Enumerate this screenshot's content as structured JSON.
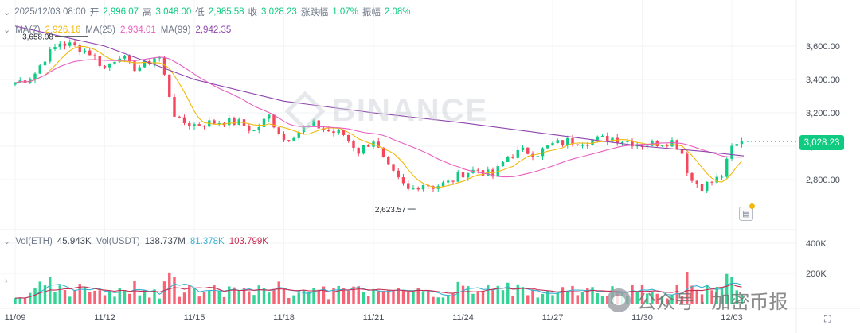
{
  "header": {
    "date": "2025/12/03 08:00",
    "open_label": "开",
    "open": "2,996.07",
    "high_label": "高",
    "high": "3,048.00",
    "low_label": "低",
    "low": "2,985.58",
    "close_label": "收",
    "close": "3,028.23",
    "change_label": "涨跌幅",
    "change": "1.07%",
    "amplitude_label": "振幅",
    "amplitude": "2.08%"
  },
  "ma_legend": {
    "ma7_label": "MA(7)",
    "ma7": "2,926.16",
    "ma25_label": "MA(25)",
    "ma25": "2,934.01",
    "ma99_label": "MA(99)",
    "ma99": "2,942.35"
  },
  "vol_legend": {
    "label1": "Vol(ETH)",
    "value1": "45.943K",
    "label2": "Vol(USDT)",
    "value2": "138.737M",
    "value3": "81.378K",
    "value4": "103.799K"
  },
  "watermark": "BINANCE",
  "wechat_watermark": "公众号 · 加密币报",
  "current_price_tag": "3,028.23",
  "colors": {
    "up": "#0ecb81",
    "down": "#f6465d",
    "ma7": "#f0b90b",
    "ma25": "#e85fc0",
    "ma99": "#8e44ad",
    "vol_ma1": "#38b2d0",
    "vol_ma2": "#c72e55"
  },
  "chart_data": [
    {
      "type": "candlestick",
      "title": "ETH/USDT",
      "x_ticks": [
        "11/09",
        "11/12",
        "11/15",
        "11/18",
        "11/21",
        "11/24",
        "11/27",
        "11/30",
        "12/03"
      ],
      "y_ticks": [
        "2,800.00",
        "3,000.00",
        "3,200.00",
        "3,400.00",
        "3,600.00"
      ],
      "ylim": [
        2600,
        3700
      ],
      "annotations": {
        "high_label": "3,658.98",
        "low_label": "2,623.57"
      },
      "knots": [
        {
          "day": 0,
          "close": 3380
        },
        {
          "day": 0.6,
          "close": 3420
        },
        {
          "day": 1.0,
          "close": 3530
        },
        {
          "day": 1.5,
          "close": 3620
        },
        {
          "day": 2.0,
          "close": 3600
        },
        {
          "day": 2.5,
          "close": 3560
        },
        {
          "day": 3.0,
          "close": 3470
        },
        {
          "day": 3.5,
          "close": 3550
        },
        {
          "day": 3.9,
          "close": 3470
        },
        {
          "day": 4.3,
          "close": 3480
        },
        {
          "day": 4.8,
          "close": 3550
        },
        {
          "day": 5.0,
          "close": 3420
        },
        {
          "day": 5.4,
          "close": 3150
        },
        {
          "day": 6.0,
          "close": 3130
        },
        {
          "day": 6.5,
          "close": 3140
        },
        {
          "day": 7.0,
          "close": 3150
        },
        {
          "day": 7.5,
          "close": 3140
        },
        {
          "day": 8.0,
          "close": 3090
        },
        {
          "day": 8.5,
          "close": 3180
        },
        {
          "day": 9.0,
          "close": 3040
        },
        {
          "day": 9.5,
          "close": 3090
        },
        {
          "day": 10.0,
          "close": 3130
        },
        {
          "day": 10.5,
          "close": 3090
        },
        {
          "day": 11.0,
          "close": 3070
        },
        {
          "day": 11.5,
          "close": 2970
        },
        {
          "day": 12.0,
          "close": 3040
        },
        {
          "day": 12.4,
          "close": 2890
        },
        {
          "day": 12.8,
          "close": 2800
        },
        {
          "day": 13.2,
          "close": 2730
        },
        {
          "day": 13.6,
          "close": 2780
        },
        {
          "day": 14.0,
          "close": 2760
        },
        {
          "day": 14.5,
          "close": 2780
        },
        {
          "day": 15.0,
          "close": 2840
        },
        {
          "day": 15.5,
          "close": 2860
        },
        {
          "day": 16.0,
          "close": 2820
        },
        {
          "day": 16.5,
          "close": 2940
        },
        {
          "day": 17.0,
          "close": 2970
        },
        {
          "day": 17.5,
          "close": 2960
        },
        {
          "day": 18.0,
          "close": 3010
        },
        {
          "day": 18.5,
          "close": 3030
        },
        {
          "day": 19.0,
          "close": 3030
        },
        {
          "day": 19.5,
          "close": 3040
        },
        {
          "day": 20.0,
          "close": 3050
        },
        {
          "day": 20.5,
          "close": 3030
        },
        {
          "day": 21.0,
          "close": 3010
        },
        {
          "day": 21.5,
          "close": 3020
        },
        {
          "day": 22.0,
          "close": 3030
        },
        {
          "day": 22.3,
          "close": 2980
        },
        {
          "day": 22.6,
          "close": 2800
        },
        {
          "day": 23.0,
          "close": 2760
        },
        {
          "day": 23.4,
          "close": 2790
        },
        {
          "day": 23.7,
          "close": 2830
        },
        {
          "day": 24.0,
          "close": 2990
        },
        {
          "day": 24.4,
          "close": 3028
        }
      ],
      "ma99_points": [
        {
          "day": 0,
          "value": 3720
        },
        {
          "day": 3.0,
          "value": 3600
        },
        {
          "day": 6.0,
          "value": 3400
        },
        {
          "day": 9.0,
          "value": 3270
        },
        {
          "day": 12.0,
          "value": 3200
        },
        {
          "day": 15.0,
          "value": 3140
        },
        {
          "day": 18.0,
          "value": 3070
        },
        {
          "day": 21.0,
          "value": 3000
        },
        {
          "day": 23.0,
          "value": 2970
        },
        {
          "day": 24.4,
          "value": 2942
        }
      ],
      "volume_ylim": [
        0,
        450000
      ],
      "volume_ticks": [
        "200K",
        "400K"
      ]
    }
  ]
}
